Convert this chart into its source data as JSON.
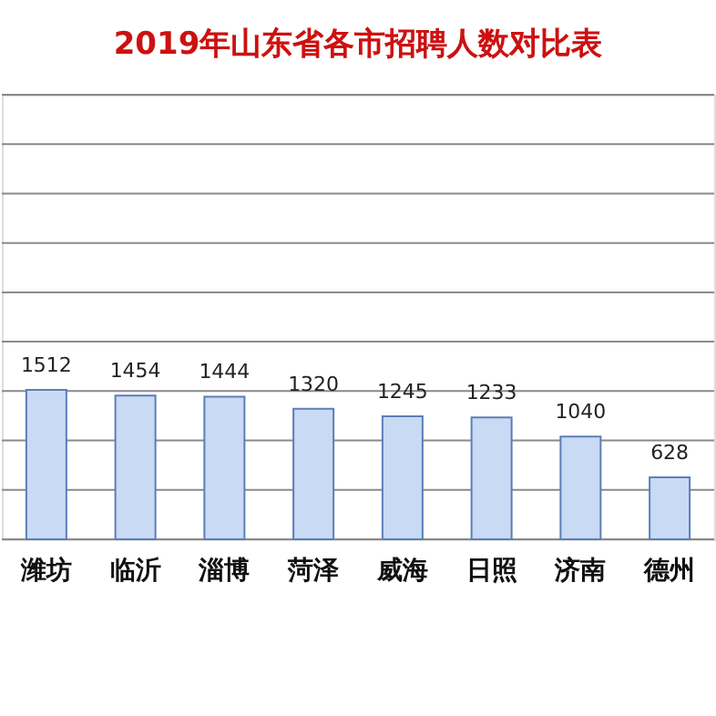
{
  "chart_data": {
    "type": "bar",
    "title": "2019年山东省各市招聘人数对比表",
    "categories": [
      "潍坊",
      "临沂",
      "淄博",
      "菏泽",
      "威海",
      "日照",
      "济南",
      "德州"
    ],
    "values": [
      1512,
      1454,
      1444,
      1320,
      1245,
      1233,
      1040,
      628
    ],
    "color": "#c9daf5",
    "data_labels": true,
    "grid": "y",
    "tick_labels": "x",
    "ylim": [
      0,
      4500
    ],
    "yticks": [
      {
        "value": 0,
        "label": null
      },
      {
        "value": 500,
        "label": null
      },
      {
        "value": 1000,
        "label": null
      },
      {
        "value": 1500,
        "label": null
      },
      {
        "value": 2000,
        "label": null
      },
      {
        "value": 2500,
        "label": null
      },
      {
        "value": 3000,
        "label": null
      },
      {
        "value": 3500,
        "label": null
      },
      {
        "value": 4000,
        "label": null
      },
      {
        "value": 4500,
        "label": null
      }
    ]
  }
}
